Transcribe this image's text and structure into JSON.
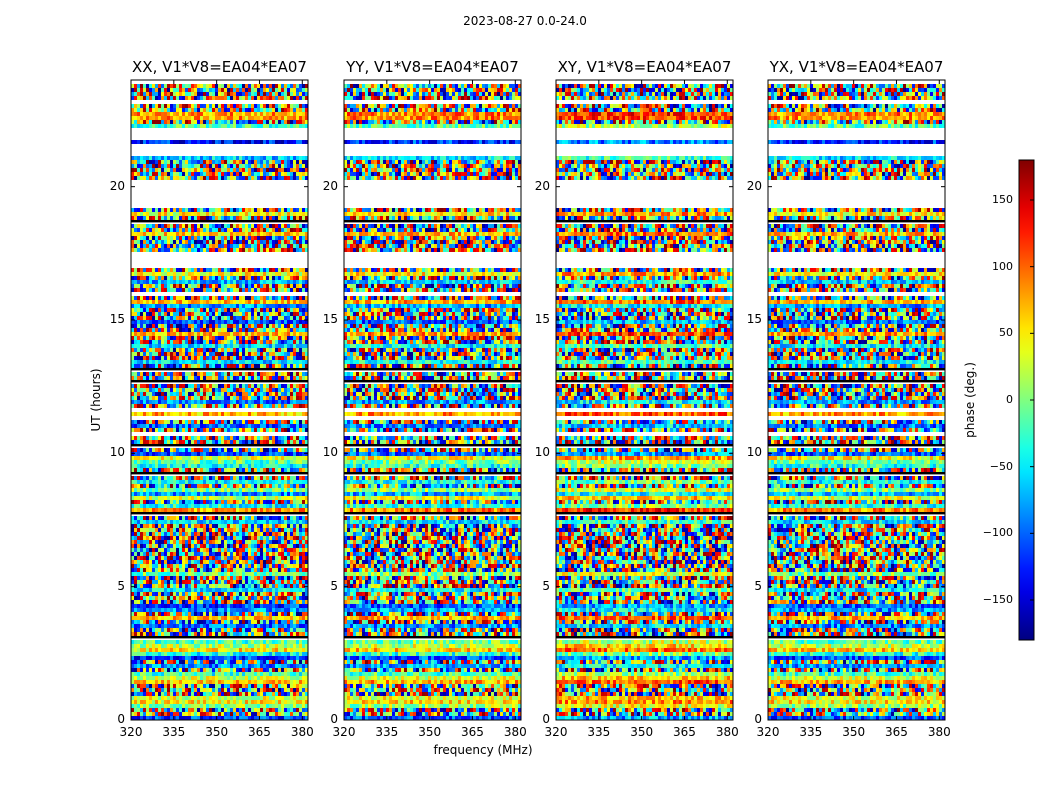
{
  "chart_data": {
    "type": "heatmap",
    "title": "2023-08-27 0.0-24.0",
    "ylabel": "UT (hours)",
    "xlabel": "frequency (MHz)",
    "ylim": [
      0,
      24
    ],
    "xlim": [
      320,
      382
    ],
    "xticks": [
      "320",
      "335",
      "350",
      "365",
      "380"
    ],
    "yticks": [
      "0",
      "5",
      "10",
      "15",
      "20"
    ],
    "panels": [
      {
        "title": "XX, V1*V8=EA04*EA07"
      },
      {
        "title": "YY, V1*V8=EA04*EA07"
      },
      {
        "title": "XY, V1*V8=EA04*EA07"
      },
      {
        "title": "YX, V1*V8=EA04*EA07"
      }
    ],
    "colorbar": {
      "label": "phase (deg.)",
      "range": [
        -180,
        180
      ],
      "ticks": [
        "150",
        "100",
        "50",
        "0",
        "−50",
        "−100",
        "−150"
      ],
      "colormap": "jet"
    },
    "grid": false
  }
}
